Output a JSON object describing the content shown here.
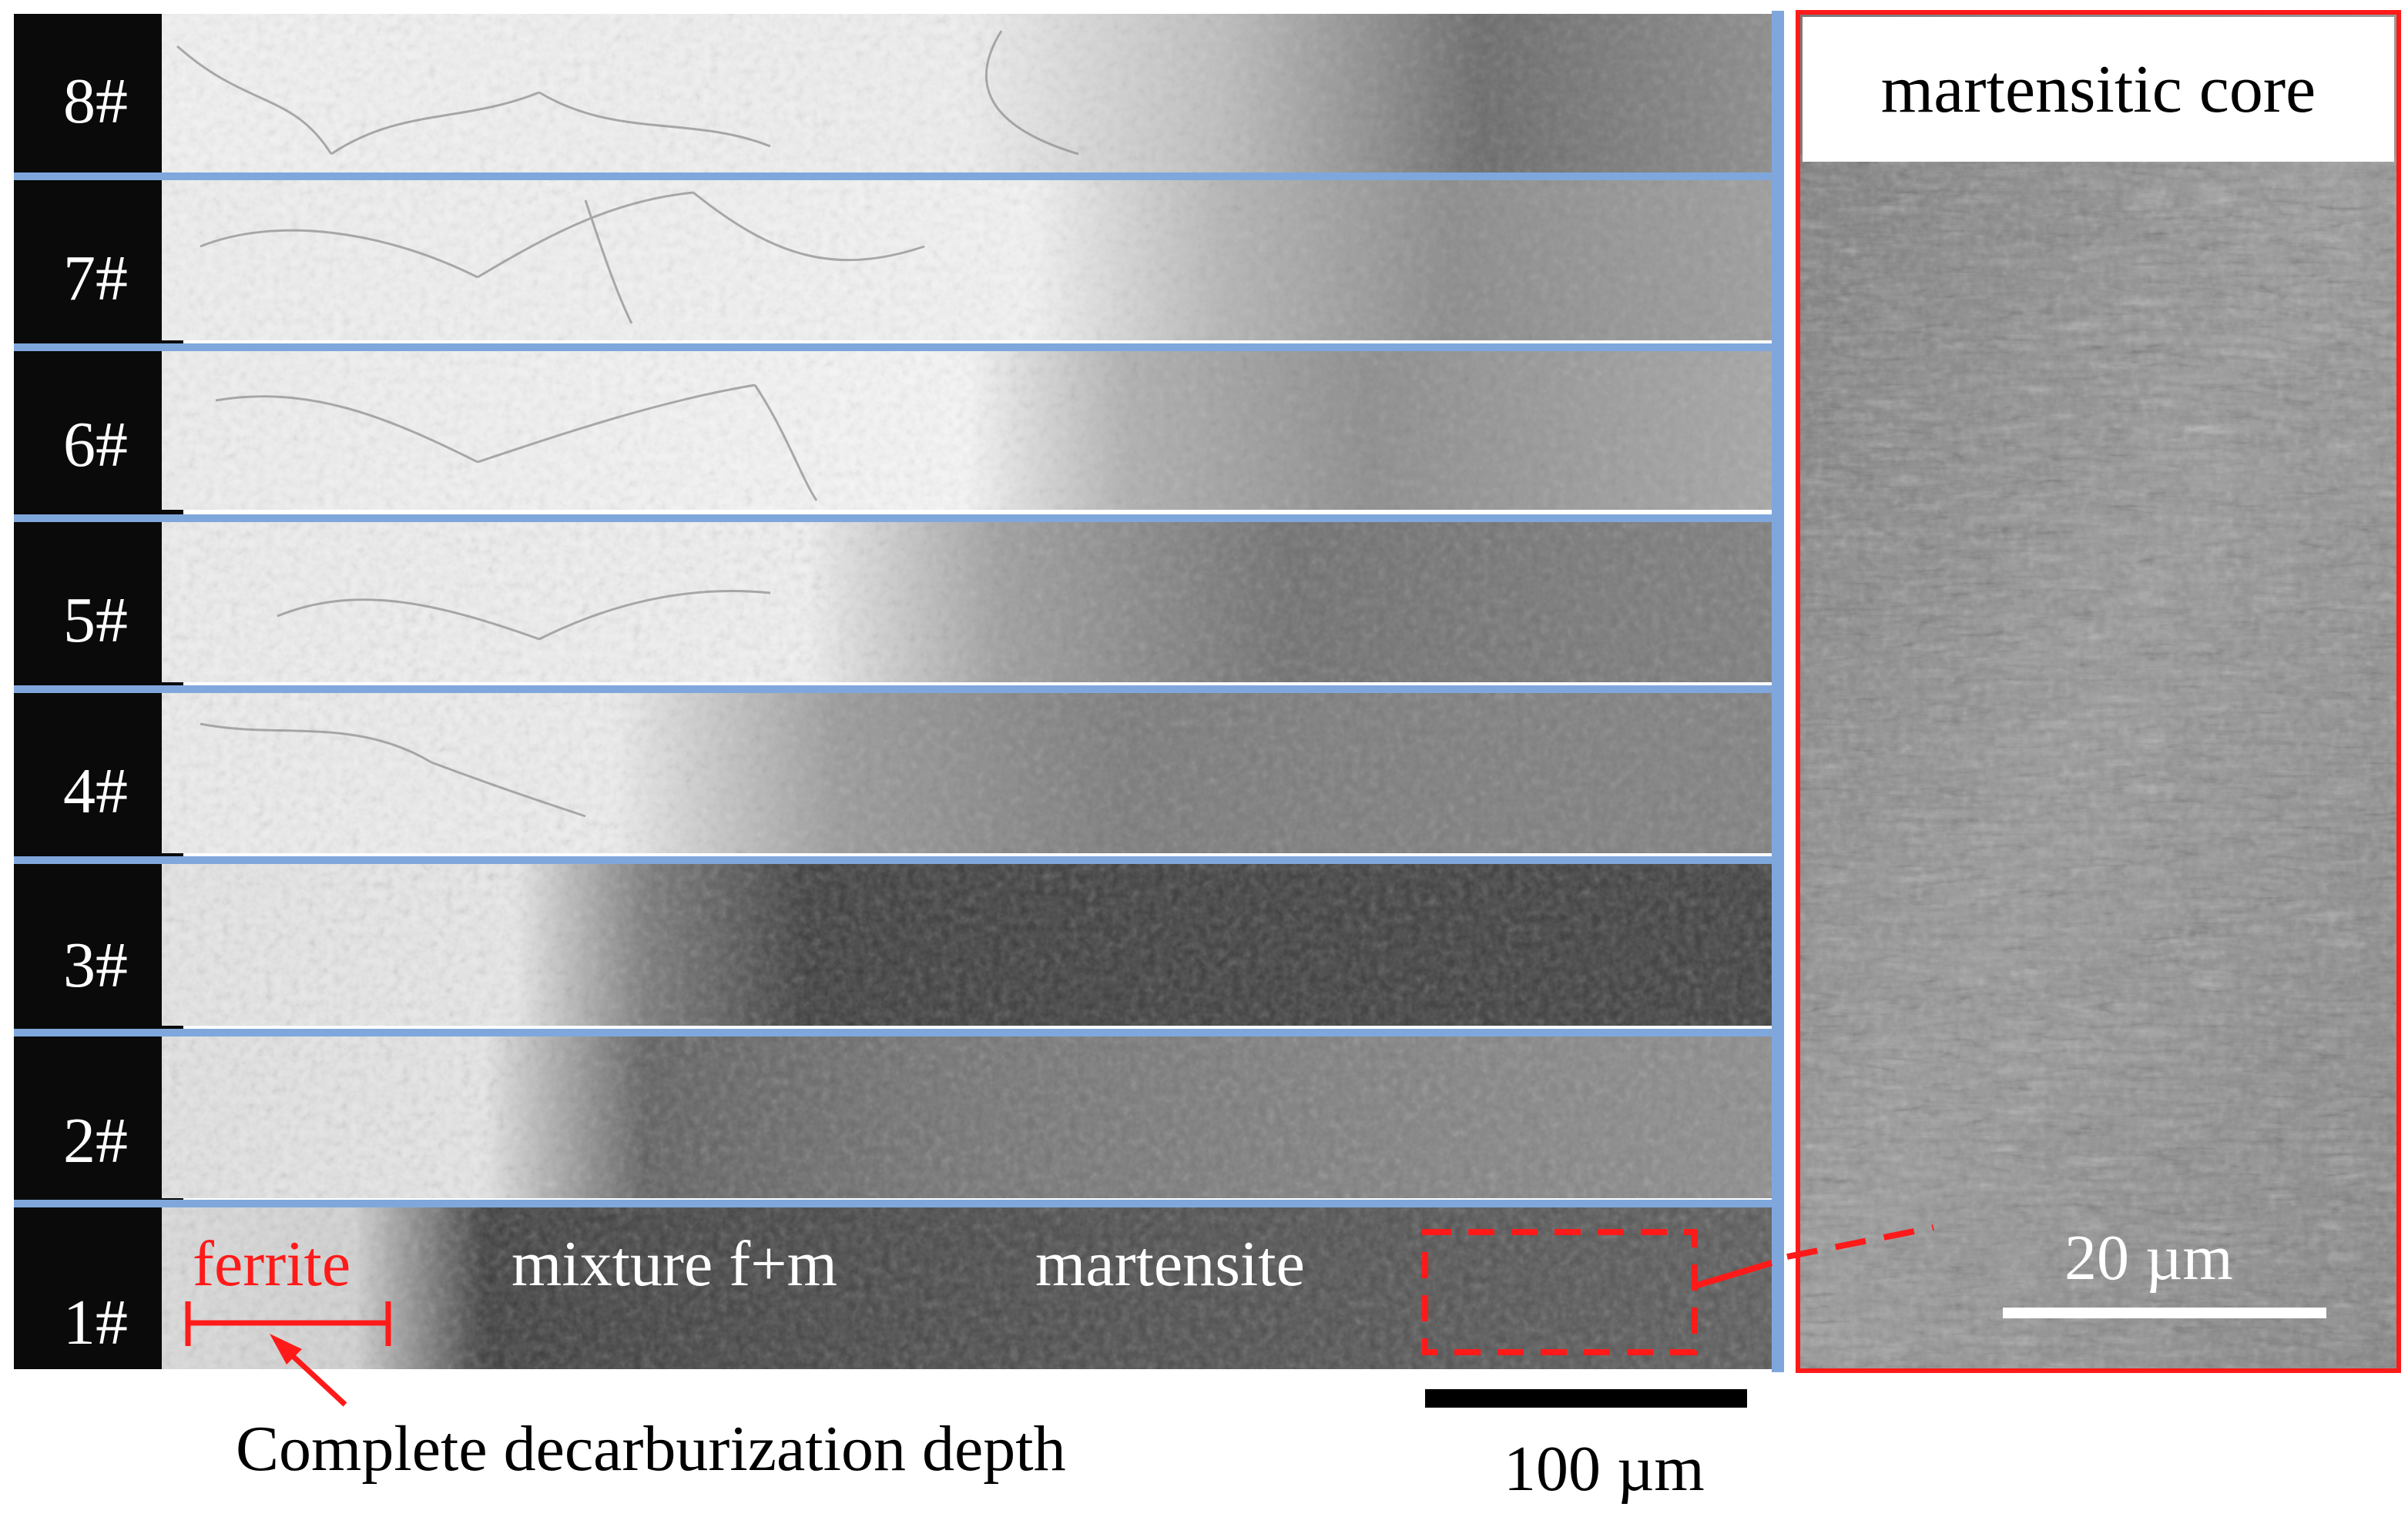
{
  "strips": [
    {
      "label": "8#"
    },
    {
      "label": "7#"
    },
    {
      "label": "6#"
    },
    {
      "label": "5#"
    },
    {
      "label": "4#"
    },
    {
      "label": "3#"
    },
    {
      "label": "2#"
    },
    {
      "label": "1#"
    }
  ],
  "annotations": {
    "ferrite": "ferrite",
    "mixture": "mixture f+m",
    "martensite": "martensite",
    "depth": "Complete decarburization depth"
  },
  "inset": {
    "title": "martensitic core",
    "scale_bar": "20 µm"
  },
  "scale_bar": "100 µm",
  "colors": {
    "divider": "#7fa7dc",
    "annotation": "#ff1a1a",
    "surface": "#0a0a0a"
  }
}
